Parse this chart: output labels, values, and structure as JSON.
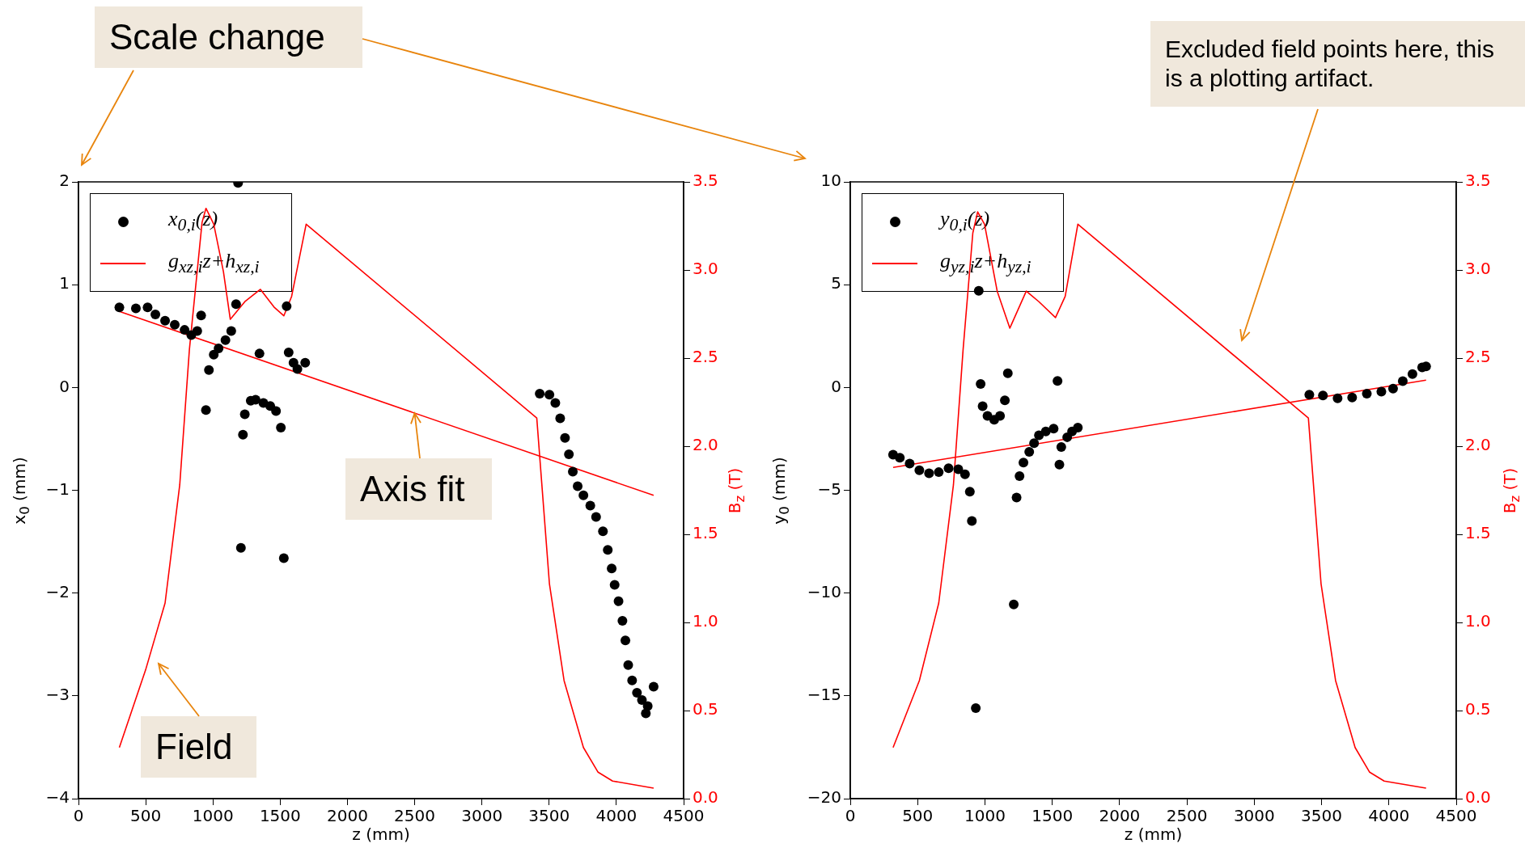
{
  "chart_data": [
    {
      "type": "scatter",
      "xlabel": "z (mm)",
      "ylabel": "x$_{0}$ (mm)",
      "y2label": "B$_{z}$ (T)",
      "xlim": [
        0,
        4500
      ],
      "xticks": [
        0,
        500,
        1000,
        1500,
        2000,
        2500,
        3000,
        3500,
        4000,
        4500
      ],
      "ylim": [
        -4,
        2
      ],
      "yticks": [
        {
          "value": -4,
          "label": "−4"
        },
        {
          "value": -3,
          "label": "−3"
        },
        {
          "value": -2,
          "label": "−2"
        },
        {
          "value": -1,
          "label": "−1"
        },
        0,
        1,
        2
      ],
      "y2lim": [
        0,
        3.5
      ],
      "y2ticks": [
        {
          "value": 0,
          "label": "0.0"
        },
        {
          "value": 0.5,
          "label": "0.5"
        },
        {
          "value": 1,
          "label": "1.0"
        },
        {
          "value": 1.5,
          "label": "1.5"
        },
        {
          "value": 2,
          "label": "2.0"
        },
        {
          "value": 2.5,
          "label": "2.5"
        },
        {
          "value": 3,
          "label": "3.0"
        },
        {
          "value": 3.5,
          "label": "3.5"
        }
      ],
      "legend": "top left",
      "grid": false,
      "annotations": [
        "Scale change",
        {
          "text": "Axis fit",
          "x": 2500,
          "y": -0.25
        },
        "Field"
      ],
      "series": [
        {
          "type": "scatter",
          "name": "x$_{0,i}$(z)",
          "color": "#000000",
          "marker": "circle",
          "x": [
            304,
            427,
            514,
            572,
            644,
            716,
            789,
            839,
            883,
            912,
            948,
            970,
            1006,
            1042,
            1093,
            1136,
            1172,
            1187,
            1223,
            1237,
            1281,
            1317,
            1375,
            1426,
            1469,
            1505,
            1346,
            1208,
            1527,
            1548,
            1563,
            1599,
            1628,
            1686,
            3430,
            3502,
            3546,
            3582,
            3618,
            3647,
            3676,
            3712,
            3755,
            3806,
            3849,
            3900,
            3936,
            3965,
            3987,
            4016,
            4045,
            4067,
            4088,
            4117,
            4153,
            4190,
            4219,
            4233,
            4277
          ],
          "values": [
            0.78,
            0.77,
            0.78,
            0.71,
            0.65,
            0.61,
            0.56,
            0.51,
            0.55,
            0.7,
            -0.22,
            0.17,
            0.32,
            0.38,
            0.46,
            0.55,
            0.81,
            1.99,
            -0.46,
            -0.26,
            -0.13,
            -0.12,
            -0.15,
            -0.18,
            -0.23,
            -0.39,
            0.33,
            -1.56,
            -1.66,
            0.79,
            0.34,
            0.24,
            0.18,
            0.24,
            -0.06,
            -0.07,
            -0.15,
            -0.3,
            -0.49,
            -0.65,
            -0.82,
            -0.96,
            -1.05,
            -1.15,
            -1.26,
            -1.4,
            -1.58,
            -1.76,
            -1.92,
            -2.08,
            -2.27,
            -2.46,
            -2.7,
            -2.85,
            -2.97,
            -3.04,
            -3.17,
            -3.1,
            -2.91
          ]
        },
        {
          "type": "line",
          "name": "g$_{xz,i}$z+h$_{xz,i}$",
          "color": "#ff0000",
          "x": [
            304,
            4277
          ],
          "values": [
            0.74,
            -1.05
          ]
        },
        {
          "type": "line",
          "axis": "y2",
          "color": "#ff0000",
          "x": [
            304,
            499,
            644,
            753,
            825,
            919,
            948,
            1006,
            1078,
            1129,
            1237,
            1353,
            1454,
            1527,
            1585,
            1693,
            3408,
            3502,
            3611,
            3755,
            3864,
            3972,
            4277
          ],
          "values": [
            0.29,
            0.73,
            1.11,
            1.78,
            2.55,
            3.27,
            3.35,
            3.26,
            2.99,
            2.72,
            2.82,
            2.89,
            2.79,
            2.74,
            2.85,
            3.26,
            2.16,
            1.22,
            0.67,
            0.29,
            0.15,
            0.1,
            0.06
          ]
        }
      ]
    },
    {
      "type": "scatter",
      "xlabel": "z (mm)",
      "ylabel": "y$_{0}$ (mm)",
      "y2label": "B$_{z}$ (T)",
      "xlim": [
        0,
        4500
      ],
      "xticks": [
        0,
        500,
        1000,
        1500,
        2000,
        2500,
        3000,
        3500,
        4000,
        4500
      ],
      "ylim": [
        -20,
        10
      ],
      "yticks": [
        {
          "value": -20,
          "label": "−20"
        },
        {
          "value": -15,
          "label": "−15"
        },
        {
          "value": -10,
          "label": "−10"
        },
        {
          "value": -5,
          "label": "−5"
        },
        0,
        5,
        10
      ],
      "y2lim": [
        0,
        3.5
      ],
      "y2ticks": [
        {
          "value": 0,
          "label": "0.0"
        },
        {
          "value": 0.5,
          "label": "0.5"
        },
        {
          "value": 1,
          "label": "1.0"
        },
        {
          "value": 1.5,
          "label": "1.5"
        },
        {
          "value": 2,
          "label": "2.0"
        },
        {
          "value": 2.5,
          "label": "2.5"
        },
        {
          "value": 3,
          "label": "3.0"
        },
        {
          "value": 3.5,
          "label": "3.5"
        }
      ],
      "legend": "top left",
      "grid": false,
      "annotations": [
        "Excluded field points here, this is a plotting artifact."
      ],
      "series": [
        {
          "type": "scatter",
          "name": "y$_{0,i}$(z)",
          "color": "#000000",
          "marker": "circle",
          "x": [
            318,
            368,
            441,
            513,
            585,
            657,
            730,
            802,
            852,
            888,
            903,
            954,
            932,
            968,
            983,
            1019,
            1069,
            1112,
            1148,
            1170,
            1214,
            1235,
            1257,
            1286,
            1329,
            1365,
            1401,
            1452,
            1510,
            1539,
            1553,
            1567,
            1611,
            1647,
            1690,
            3409,
            3510,
            3619,
            3727,
            3836,
            3944,
            4031,
            4103,
            4175,
            4247,
            4276
          ],
          "values": [
            -3.27,
            -3.42,
            -3.7,
            -4.03,
            -4.17,
            -4.12,
            -3.93,
            -3.98,
            -4.22,
            -5.07,
            -6.49,
            4.7,
            -15.6,
            0.17,
            -0.91,
            -1.38,
            -1.57,
            -1.38,
            -0.63,
            0.69,
            -10.55,
            -5.35,
            -4.31,
            -3.65,
            -3.13,
            -2.71,
            -2.33,
            -2.14,
            -2.0,
            0.32,
            -3.75,
            -2.9,
            -2.42,
            -2.14,
            -1.95,
            -0.35,
            -0.39,
            -0.53,
            -0.49,
            -0.3,
            -0.2,
            -0.06,
            0.31,
            0.65,
            0.98,
            1.03
          ]
        },
        {
          "type": "line",
          "name": "g$_{yz,i}$z+h$_{yz,i}$",
          "color": "#ff0000",
          "x": [
            318,
            4276
          ],
          "values": [
            -3.89,
            0.36
          ]
        },
        {
          "type": "line",
          "axis": "y2",
          "color": "#ff0000",
          "x": [
            318,
            513,
            657,
            766,
            838,
            910,
            946,
            997,
            1091,
            1185,
            1307,
            1401,
            1524,
            1596,
            1690,
            3402,
            3496,
            3604,
            3749,
            3857,
            3965,
            4276
          ],
          "values": [
            0.29,
            0.67,
            1.11,
            1.78,
            2.55,
            3.21,
            3.33,
            3.26,
            2.88,
            2.67,
            2.88,
            2.82,
            2.73,
            2.85,
            3.26,
            2.16,
            1.22,
            0.67,
            0.29,
            0.15,
            0.1,
            0.06
          ]
        }
      ]
    }
  ]
}
